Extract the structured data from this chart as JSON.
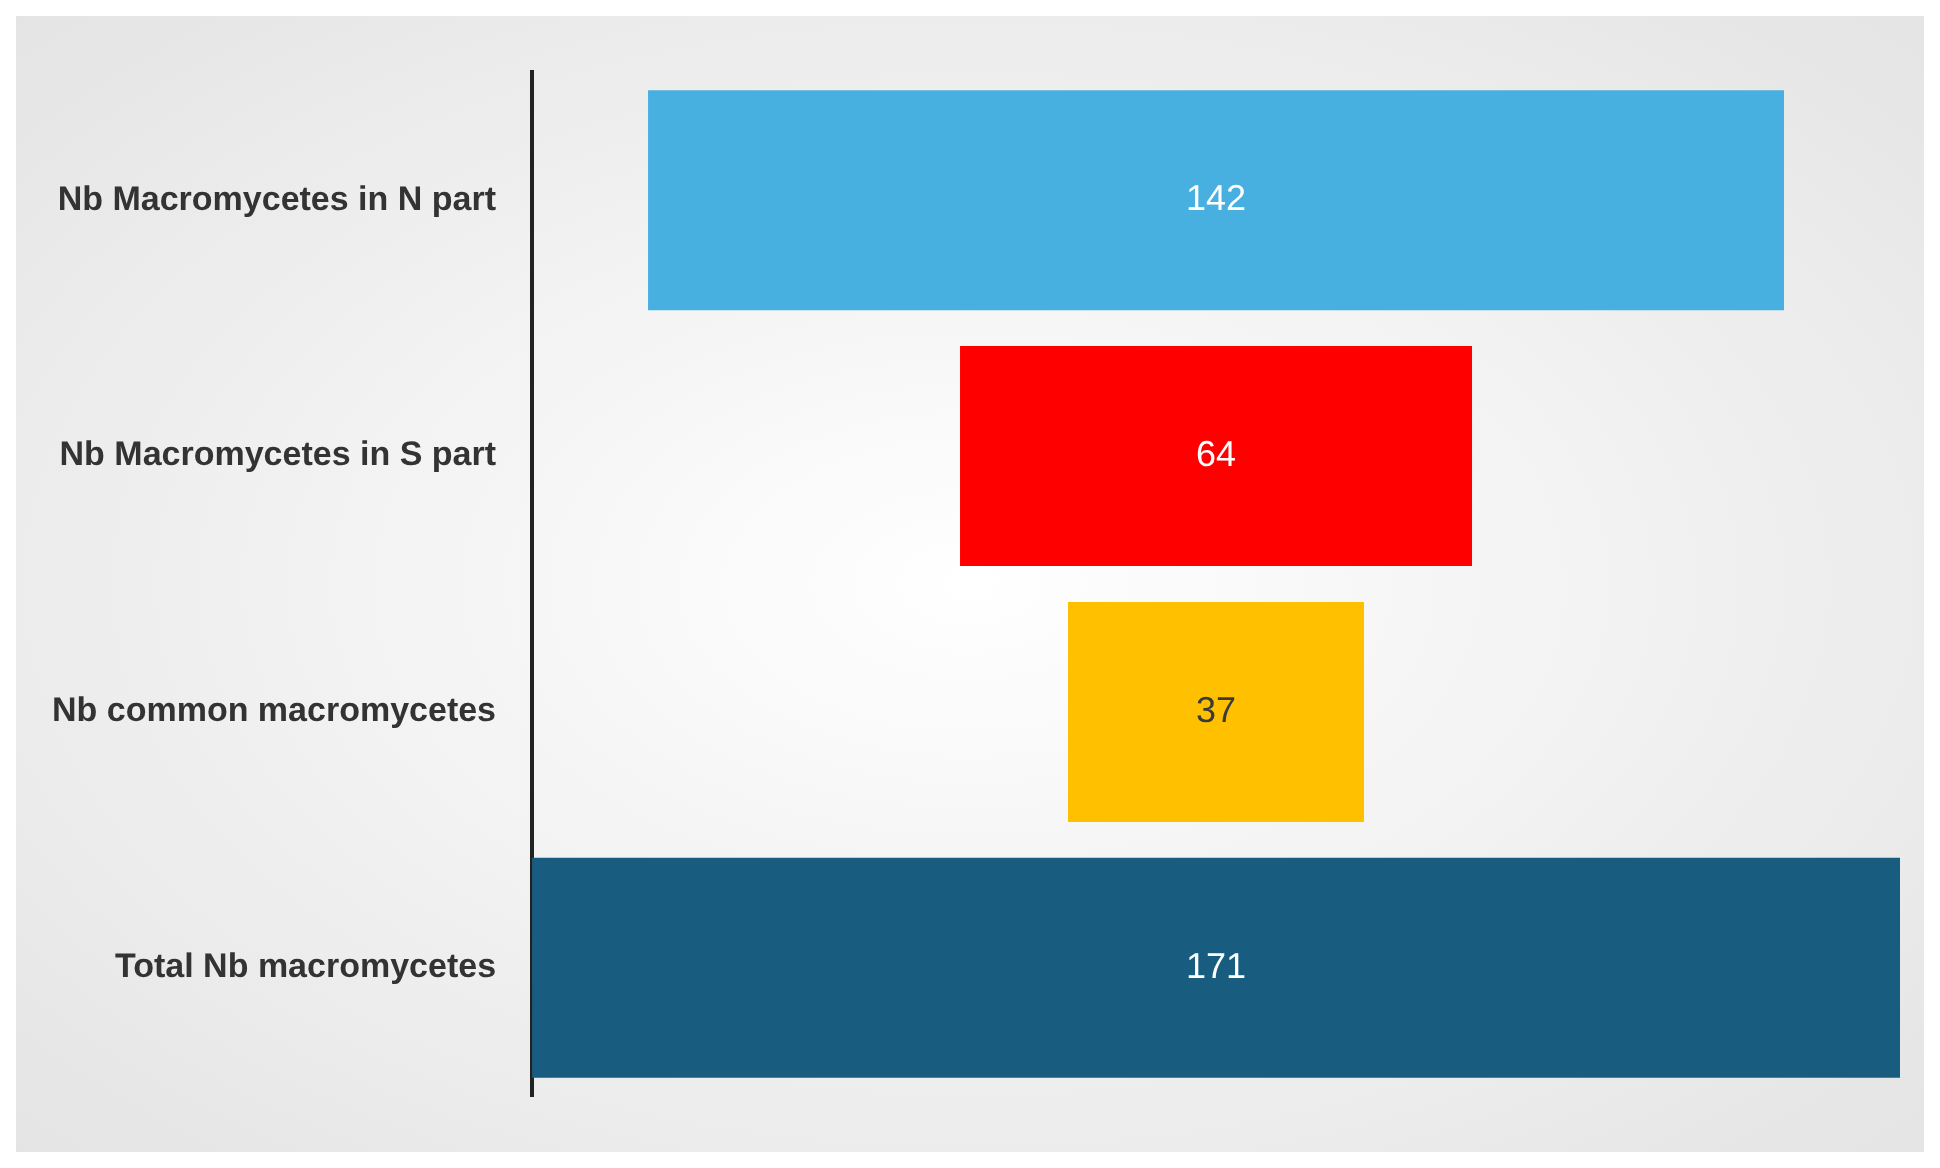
{
  "chart_data": {
    "type": "other",
    "categories": [
      "Nb Macromycetes in N part",
      "Nb Macromycetes in S part",
      "Nb common macromycetes",
      "Total Nb macromycetes"
    ],
    "values": [
      142,
      64,
      37,
      171
    ],
    "colors": [
      "#47b0e0",
      "#ff0000",
      "#ffc000",
      "#185d80"
    ],
    "data_labels": true
  }
}
